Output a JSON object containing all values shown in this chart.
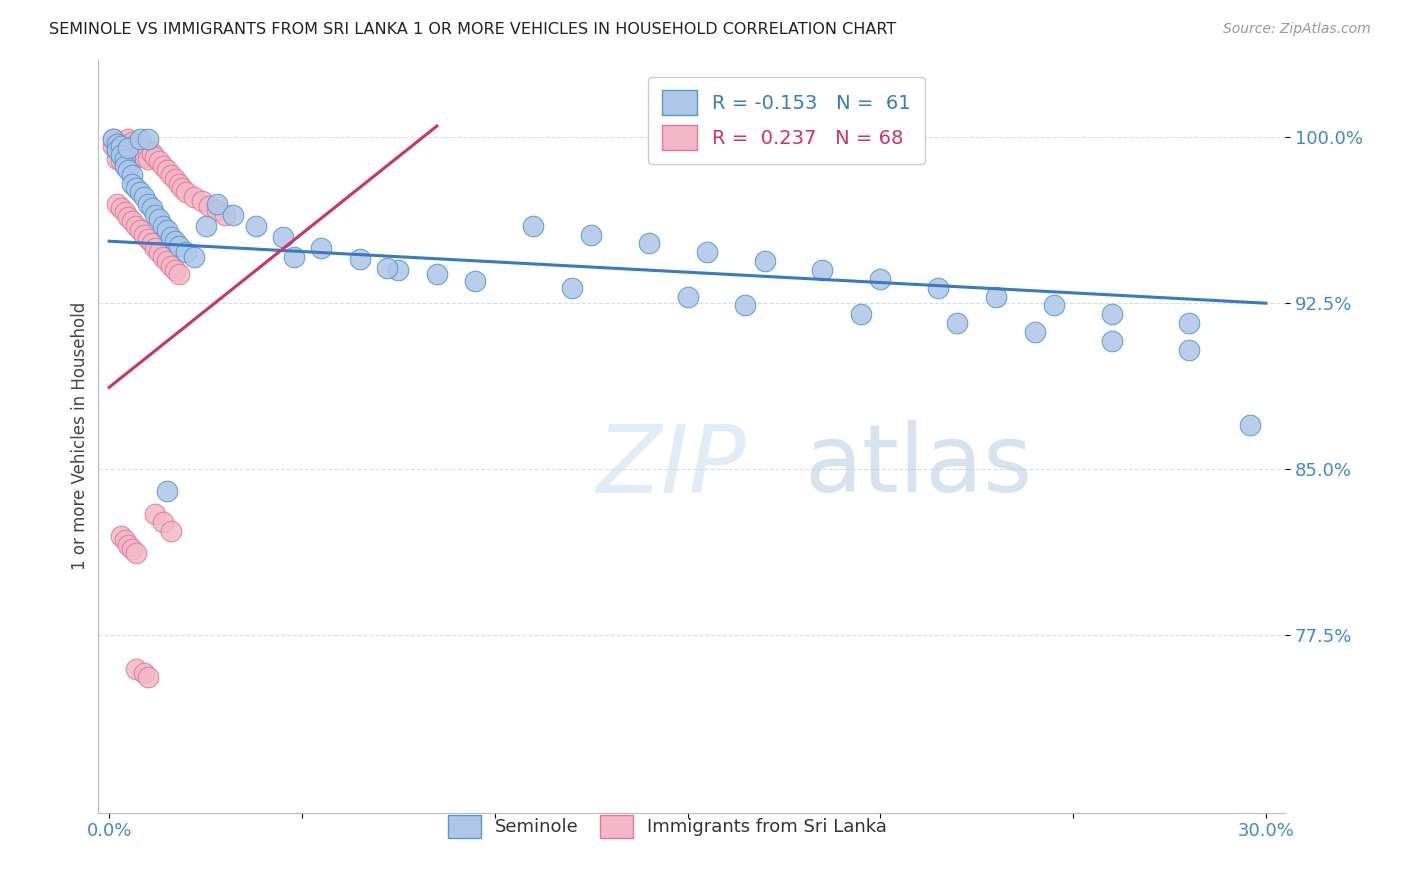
{
  "title": "SEMINOLE VS IMMIGRANTS FROM SRI LANKA 1 OR MORE VEHICLES IN HOUSEHOLD CORRELATION CHART",
  "source": "Source: ZipAtlas.com",
  "ylabel": "1 or more Vehicles in Household",
  "ytick_values": [
    1.0,
    0.925,
    0.85,
    0.775
  ],
  "ytick_labels": [
    "100.0%",
    "92.5%",
    "85.0%",
    "77.5%"
  ],
  "xlim": [
    -0.003,
    0.305
  ],
  "ylim": [
    0.695,
    1.035
  ],
  "seminole_color": "#aec6e8",
  "srilanka_color": "#f4b8c8",
  "seminole_edge_color": "#5599cc",
  "srilanka_edge_color": "#e0789a",
  "seminole_line_color": "#3a7abf",
  "srilanka_line_color": "#cc3366",
  "watermark_color": "#ddeeff",
  "grid_color": "#ccddee",
  "title_color": "#222222",
  "source_color": "#999999",
  "ytick_color": "#4488cc",
  "xtick_color": "#4488cc",
  "legend_text_blue": "#3a7abf",
  "legend_text_pink": "#cc3366",
  "legend1_label": "R = -0.153   N =  61",
  "legend2_label": "R =  0.237   N = 68",
  "bottom_legend1": "Seminole",
  "bottom_legend2": "Immigrants from Sri Lanka",
  "sem_blue_line_x0": 0.0,
  "sem_blue_line_y0": 0.953,
  "sem_blue_line_x1": 0.3,
  "sem_blue_line_y1": 0.925,
  "sri_pink_line_x0": 0.0,
  "sri_pink_line_y0": 0.887,
  "sri_pink_line_x1": 0.085,
  "sri_pink_line_y1": 1.005,
  "seminole_x": [
    0.001,
    0.002,
    0.002,
    0.003,
    0.003,
    0.004,
    0.004,
    0.005,
    0.005,
    0.006,
    0.006,
    0.007,
    0.008,
    0.008,
    0.009,
    0.01,
    0.01,
    0.011,
    0.012,
    0.013,
    0.014,
    0.015,
    0.016,
    0.017,
    0.018,
    0.02,
    0.022,
    0.025,
    0.028,
    0.032,
    0.038,
    0.045,
    0.055,
    0.065,
    0.075,
    0.085,
    0.095,
    0.11,
    0.125,
    0.14,
    0.155,
    0.17,
    0.185,
    0.2,
    0.215,
    0.23,
    0.245,
    0.26,
    0.28,
    0.296,
    0.048,
    0.072,
    0.12,
    0.15,
    0.165,
    0.195,
    0.22,
    0.24,
    0.26,
    0.28,
    0.015
  ],
  "seminole_y": [
    0.999,
    0.997,
    0.994,
    0.996,
    0.992,
    0.99,
    0.987,
    0.995,
    0.985,
    0.983,
    0.979,
    0.977,
    0.999,
    0.975,
    0.973,
    0.999,
    0.97,
    0.968,
    0.965,
    0.963,
    0.96,
    0.958,
    0.955,
    0.953,
    0.951,
    0.948,
    0.946,
    0.96,
    0.97,
    0.965,
    0.96,
    0.955,
    0.95,
    0.945,
    0.94,
    0.938,
    0.935,
    0.96,
    0.956,
    0.952,
    0.948,
    0.944,
    0.94,
    0.936,
    0.932,
    0.928,
    0.924,
    0.92,
    0.916,
    0.87,
    0.946,
    0.941,
    0.932,
    0.928,
    0.924,
    0.92,
    0.916,
    0.912,
    0.908,
    0.904,
    0.84
  ],
  "srilanka_x": [
    0.001,
    0.001,
    0.002,
    0.002,
    0.002,
    0.003,
    0.003,
    0.003,
    0.004,
    0.004,
    0.004,
    0.005,
    0.005,
    0.005,
    0.006,
    0.006,
    0.006,
    0.007,
    0.007,
    0.008,
    0.008,
    0.009,
    0.009,
    0.01,
    0.01,
    0.011,
    0.012,
    0.013,
    0.014,
    0.015,
    0.016,
    0.017,
    0.018,
    0.019,
    0.02,
    0.022,
    0.024,
    0.026,
    0.028,
    0.03,
    0.002,
    0.003,
    0.004,
    0.005,
    0.006,
    0.007,
    0.008,
    0.009,
    0.01,
    0.011,
    0.012,
    0.013,
    0.014,
    0.015,
    0.016,
    0.017,
    0.018,
    0.012,
    0.014,
    0.016,
    0.003,
    0.004,
    0.005,
    0.006,
    0.007,
    0.007,
    0.009,
    0.01
  ],
  "srilanka_y": [
    0.999,
    0.996,
    0.998,
    0.994,
    0.99,
    0.997,
    0.993,
    0.989,
    0.996,
    0.992,
    0.988,
    0.999,
    0.995,
    0.991,
    0.998,
    0.994,
    0.99,
    0.997,
    0.993,
    0.996,
    0.992,
    0.995,
    0.991,
    0.994,
    0.99,
    0.993,
    0.991,
    0.989,
    0.987,
    0.985,
    0.983,
    0.981,
    0.979,
    0.977,
    0.975,
    0.973,
    0.971,
    0.969,
    0.967,
    0.965,
    0.97,
    0.968,
    0.966,
    0.964,
    0.962,
    0.96,
    0.958,
    0.956,
    0.954,
    0.952,
    0.95,
    0.948,
    0.946,
    0.944,
    0.942,
    0.94,
    0.938,
    0.83,
    0.826,
    0.822,
    0.82,
    0.818,
    0.816,
    0.814,
    0.812,
    0.76,
    0.758,
    0.756
  ]
}
